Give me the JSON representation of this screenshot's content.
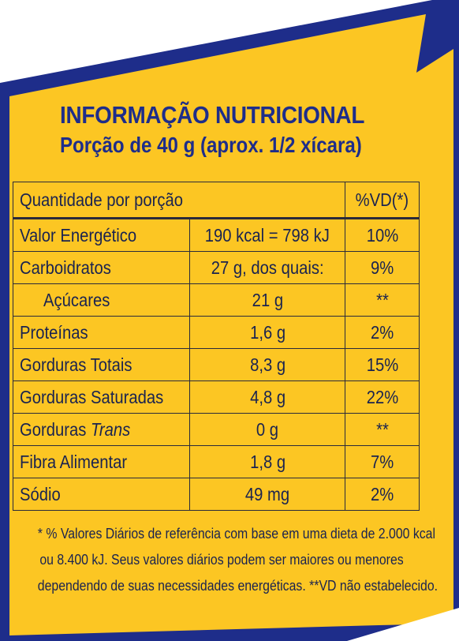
{
  "colors": {
    "panel": "#fcc623",
    "border_blue": "#1e2d8a",
    "title": "#1e2d8a",
    "text": "#1a2350"
  },
  "header": {
    "title": "INFORMAÇÃO NUTRICIONAL",
    "subtitle": "Porção de 40 g (aprox. 1/2 xícara)"
  },
  "table": {
    "col_quantity_header": "Quantidade por porção",
    "col_vd_header": "%VD(*)",
    "rows": [
      {
        "name": "Valor Energético",
        "amount": "190 kcal = 798 kJ",
        "vd": "10%"
      },
      {
        "name": "Carboidratos",
        "amount": "27 g, dos quais:",
        "vd": "9%"
      },
      {
        "name": "Açúcares",
        "amount": "21 g",
        "vd": "**"
      },
      {
        "name": "Proteínas",
        "amount": "1,6 g",
        "vd": "2%"
      },
      {
        "name": "Gorduras Totais",
        "amount": "8,3 g",
        "vd": "15%"
      },
      {
        "name": "Gorduras Saturadas",
        "amount": "4,8 g",
        "vd": "22%"
      },
      {
        "name": "Gorduras",
        "name_italic": "Trans",
        "amount": "0 g",
        "vd": "**"
      },
      {
        "name": "Fibra Alimentar",
        "amount": "1,8 g",
        "vd": "7%"
      },
      {
        "name": "Sódio",
        "amount": "49 mg",
        "vd": "2%"
      }
    ]
  },
  "footnote": {
    "line1": "* % Valores Diários de referência com base em uma dieta de 2.000 kcal",
    "line2": "ou 8.400 kJ. Seus valores diários podem ser maiores ou menores",
    "line3": "dependendo de suas necessidades energéticas. **VD não estabelecido."
  }
}
